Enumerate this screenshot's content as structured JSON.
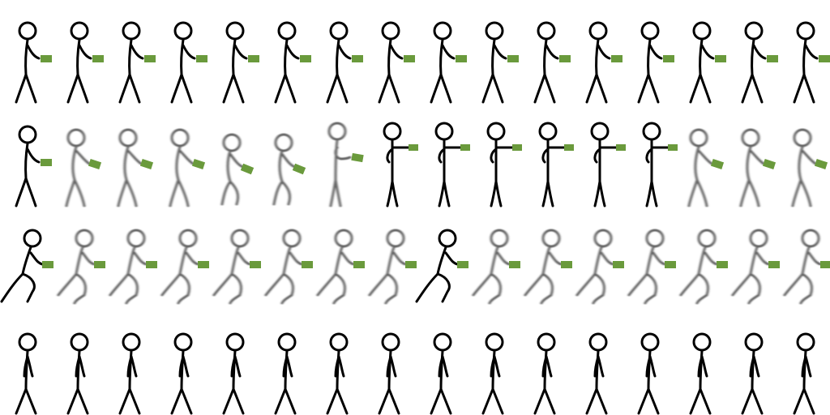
{
  "sprite_sheet": {
    "columns": 16,
    "prop_color": "#6a9a3c",
    "line_color": "#000000",
    "background": "#ffffff",
    "rows": [
      {
        "name": "stand-holding-item",
        "prop": true,
        "frames": [
          "idle",
          "idle",
          "idle",
          "idle",
          "idle",
          "idle",
          "idle",
          "idle",
          "idle",
          "idle",
          "idle",
          "idle",
          "idle",
          "idle",
          "idle",
          "idle"
        ]
      },
      {
        "name": "fumble-and-recover",
        "prop": true,
        "frames": [
          "idle",
          "bend",
          "bend",
          "bend",
          "crouch",
          "crouch",
          "lean",
          "ready",
          "ready",
          "ready",
          "ready",
          "ready",
          "ready",
          "bend",
          "bend",
          "bend"
        ]
      },
      {
        "name": "run-holding-item",
        "prop": true,
        "frames": [
          "stride",
          "run",
          "run",
          "run",
          "run",
          "run",
          "run",
          "run",
          "stride",
          "run",
          "run",
          "run",
          "run",
          "run",
          "run",
          "run"
        ]
      },
      {
        "name": "walk-empty-handed",
        "prop": false,
        "frames": [
          "walk",
          "walk",
          "walk",
          "walk",
          "walk",
          "walk",
          "walk",
          "walk",
          "walk",
          "walk",
          "walk",
          "walk",
          "walk",
          "walk",
          "walk",
          "walk"
        ]
      }
    ]
  }
}
